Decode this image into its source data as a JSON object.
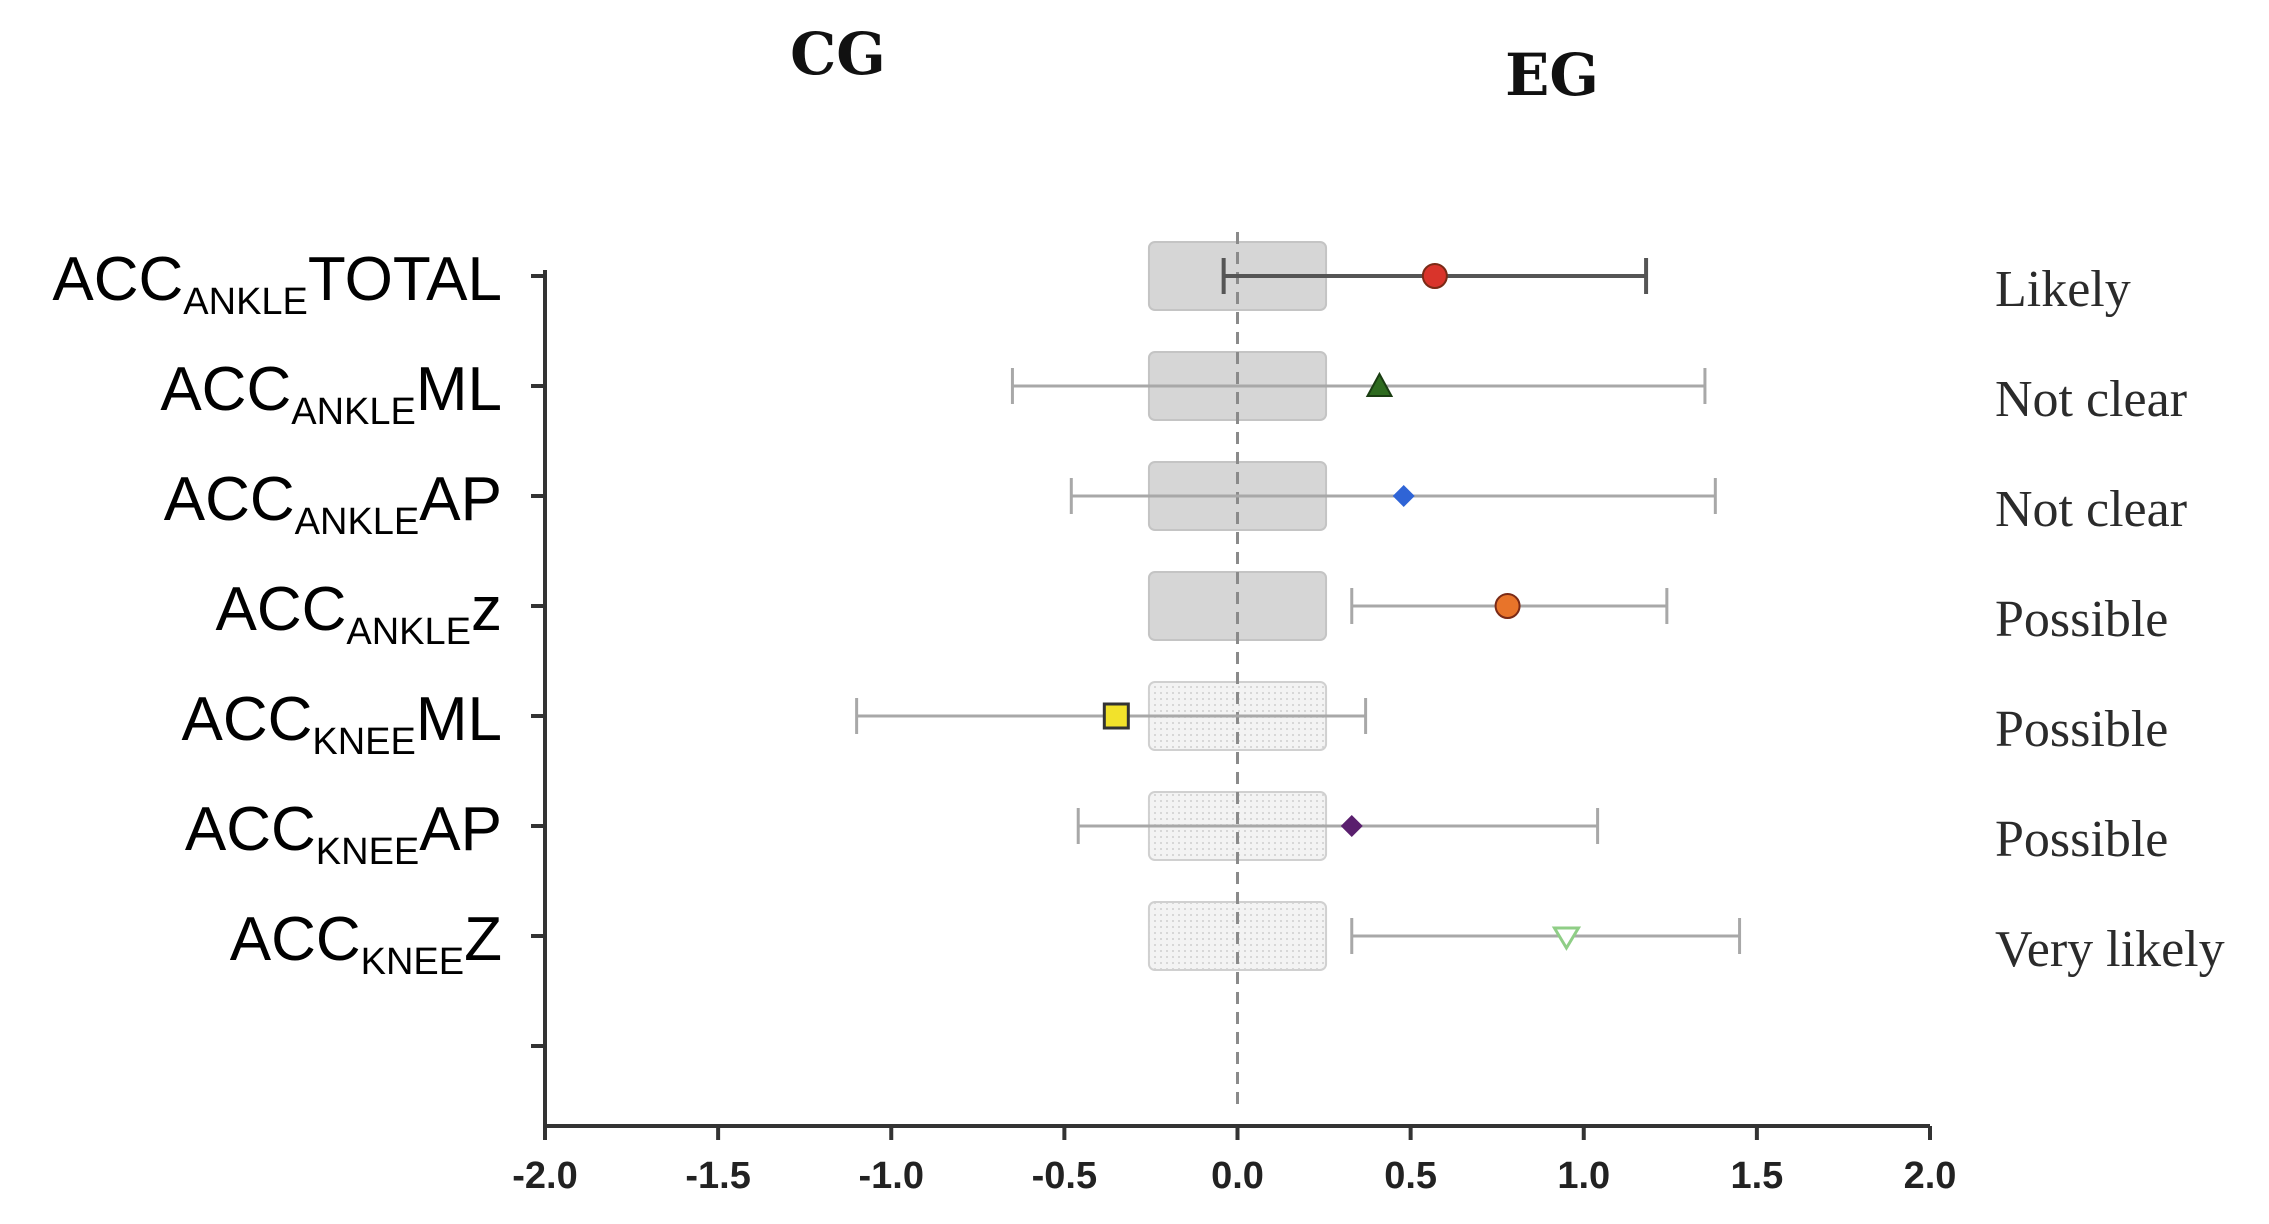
{
  "chart_data": {
    "type": "forest",
    "group_labels": {
      "left": "CG",
      "right": "EG"
    },
    "x_ticks": [
      "-2.0",
      "-1.5",
      "-1.0",
      "-0.5",
      "0.0",
      "0.5",
      "1.0",
      "1.5",
      "2.0"
    ],
    "xlim": [
      -2.0,
      2.0
    ],
    "trivial_zone": [
      -0.25,
      0.25
    ],
    "reference_line": 0.0,
    "rows": [
      {
        "label_main": "ACC",
        "label_sub": "ANKLE",
        "label_tail": "TOTAL",
        "estimate": 0.57,
        "ci": [
          -0.04,
          1.18
        ],
        "outcome": "Likely",
        "marker": "circle",
        "color": "#d9342b",
        "zone_style": "solid"
      },
      {
        "label_main": "ACC",
        "label_sub": "ANKLE",
        "label_tail": "ML",
        "estimate": 0.41,
        "ci": [
          -0.65,
          1.35
        ],
        "outcome": "Not clear",
        "marker": "triangle",
        "color": "#2e6b1f",
        "zone_style": "solid"
      },
      {
        "label_main": "ACC",
        "label_sub": "ANKLE",
        "label_tail": "AP",
        "estimate": 0.48,
        "ci": [
          -0.48,
          1.38
        ],
        "outcome": "Not clear",
        "marker": "diamond",
        "color": "#2f64d6",
        "zone_style": "solid"
      },
      {
        "label_main": "ACC",
        "label_sub": "ANKLE",
        "label_tail": "z",
        "estimate": 0.78,
        "ci": [
          0.33,
          1.24
        ],
        "outcome": "Possible",
        "marker": "circle",
        "color": "#e8742a",
        "zone_style": "solid"
      },
      {
        "label_main": "ACC",
        "label_sub": "KNEE",
        "label_tail": "ML",
        "estimate": -0.35,
        "ci": [
          -1.1,
          0.37
        ],
        "outcome": "Possible",
        "marker": "square",
        "color": "#f2e22b",
        "zone_style": "dotted"
      },
      {
        "label_main": "ACC",
        "label_sub": "KNEE",
        "label_tail": "AP",
        "estimate": 0.33,
        "ci": [
          -0.46,
          1.04
        ],
        "outcome": "Possible",
        "marker": "diamond",
        "color": "#5a1f6e",
        "zone_style": "dotted"
      },
      {
        "label_main": "ACC",
        "label_sub": "KNEE",
        "label_tail": "Z",
        "estimate": 0.95,
        "ci": [
          0.33,
          1.45
        ],
        "outcome": "Very likely",
        "marker": "triangle-down",
        "color": "#8fce86",
        "zone_style": "dotted"
      }
    ]
  }
}
